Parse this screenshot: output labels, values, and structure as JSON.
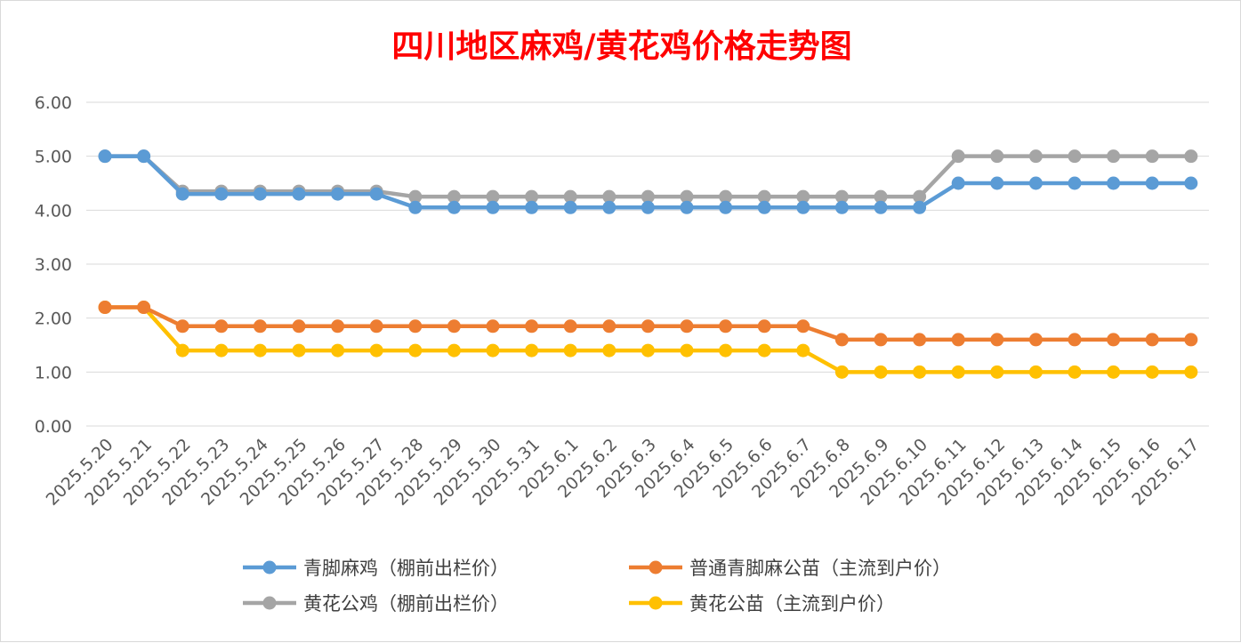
{
  "chart_data": {
    "type": "line",
    "title": "四川地区麻鸡/黄花鸡价格走势图",
    "xlabel": "",
    "ylabel": "",
    "ylim": [
      0,
      6
    ],
    "yticks": [
      "0.00",
      "1.00",
      "2.00",
      "3.00",
      "4.00",
      "5.00",
      "6.00"
    ],
    "grid": true,
    "legend_position": "bottom",
    "categories": [
      "2025.5.20",
      "2025.5.21",
      "2025.5.22",
      "2025.5.23",
      "2025.5.24",
      "2025.5.25",
      "2025.5.26",
      "2025.5.27",
      "2025.5.28",
      "2025.5.29",
      "2025.5.30",
      "2025.5.31",
      "2025.6.1",
      "2025.6.2",
      "2025.6.3",
      "2025.6.4",
      "2025.6.5",
      "2025.6.6",
      "2025.6.7",
      "2025.6.8",
      "2025.6.9",
      "2025.6.10",
      "2025.6.11",
      "2025.6.12",
      "2025.6.13",
      "2025.6.14",
      "2025.6.15",
      "2025.6.16",
      "2025.6.17"
    ],
    "series": [
      {
        "name": "青脚麻鸡（棚前出栏价）",
        "color": "#5b9bd5",
        "values": [
          5.0,
          5.0,
          4.3,
          4.3,
          4.3,
          4.3,
          4.3,
          4.3,
          4.05,
          4.05,
          4.05,
          4.05,
          4.05,
          4.05,
          4.05,
          4.05,
          4.05,
          4.05,
          4.05,
          4.05,
          4.05,
          4.05,
          4.5,
          4.5,
          4.5,
          4.5,
          4.5,
          4.5,
          4.5
        ]
      },
      {
        "name": "普通青脚麻公苗（主流到户价）",
        "color": "#ed7d31",
        "values": [
          2.2,
          2.2,
          1.85,
          1.85,
          1.85,
          1.85,
          1.85,
          1.85,
          1.85,
          1.85,
          1.85,
          1.85,
          1.85,
          1.85,
          1.85,
          1.85,
          1.85,
          1.85,
          1.85,
          1.6,
          1.6,
          1.6,
          1.6,
          1.6,
          1.6,
          1.6,
          1.6,
          1.6,
          1.6
        ]
      },
      {
        "name": "黄花公鸡（棚前出栏价）",
        "color": "#a5a5a5",
        "values": [
          5.0,
          5.0,
          4.35,
          4.35,
          4.35,
          4.35,
          4.35,
          4.35,
          4.25,
          4.25,
          4.25,
          4.25,
          4.25,
          4.25,
          4.25,
          4.25,
          4.25,
          4.25,
          4.25,
          4.25,
          4.25,
          4.25,
          5.0,
          5.0,
          5.0,
          5.0,
          5.0,
          5.0,
          5.0
        ]
      },
      {
        "name": "黄花公苗（主流到户价）",
        "color": "#ffc000",
        "values": [
          2.2,
          2.2,
          1.4,
          1.4,
          1.4,
          1.4,
          1.4,
          1.4,
          1.4,
          1.4,
          1.4,
          1.4,
          1.4,
          1.4,
          1.4,
          1.4,
          1.4,
          1.4,
          1.4,
          1.0,
          1.0,
          1.0,
          1.0,
          1.0,
          1.0,
          1.0,
          1.0,
          1.0,
          1.0
        ]
      }
    ]
  }
}
